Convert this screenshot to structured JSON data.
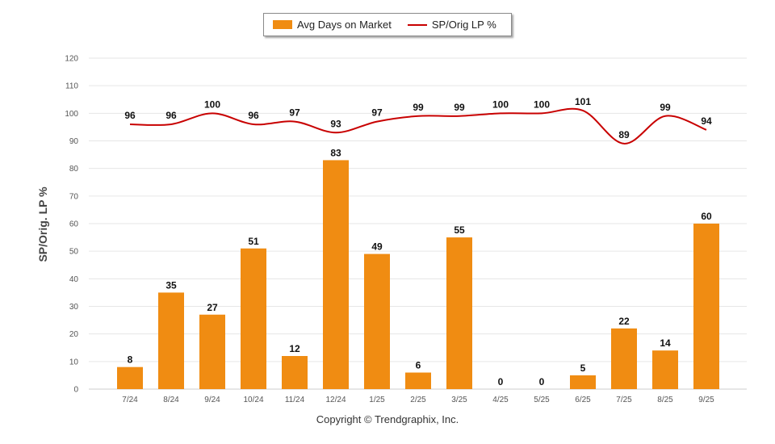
{
  "colors": {
    "bar": "#F08C12",
    "line": "#C80000",
    "grid": "#e6e6e6",
    "axis_text": "#555555"
  },
  "legend": {
    "bar_label": "Avg Days on Market",
    "line_label": "SP/Orig LP %"
  },
  "copyright": "Copyright © Trendgraphix, Inc.",
  "chart_data": {
    "type": "bar",
    "title": "",
    "ylabel": "SP/Orig. LP %",
    "xlabel": "",
    "ylim": [
      0,
      120
    ],
    "yticks": [
      0,
      10,
      20,
      30,
      40,
      50,
      60,
      70,
      80,
      90,
      100,
      110,
      120
    ],
    "grid": true,
    "legend_position": "top-center",
    "categories": [
      "7/24",
      "8/24",
      "9/24",
      "10/24",
      "11/24",
      "12/24",
      "1/25",
      "2/25",
      "3/25",
      "4/25",
      "5/25",
      "6/25",
      "7/25",
      "8/25",
      "9/25"
    ],
    "series": [
      {
        "name": "Avg Days on Market",
        "type": "bar",
        "values": [
          8,
          35,
          27,
          51,
          12,
          83,
          49,
          6,
          55,
          0,
          0,
          5,
          22,
          14,
          60
        ]
      },
      {
        "name": "SP/Orig LP %",
        "type": "line",
        "values": [
          96,
          96,
          100,
          96,
          97,
          93,
          97,
          99,
          99,
          100,
          100,
          101,
          89,
          99,
          94
        ]
      }
    ]
  }
}
